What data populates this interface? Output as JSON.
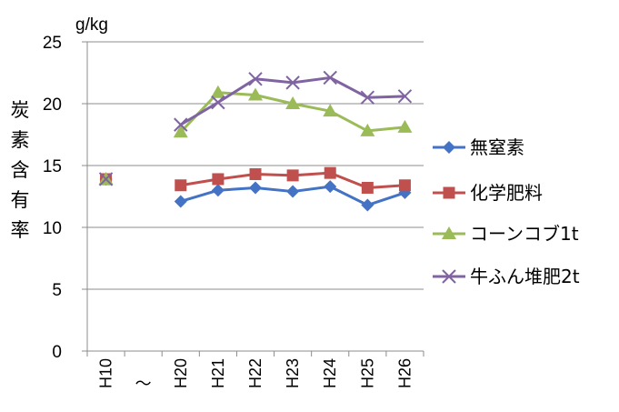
{
  "chart_data": {
    "type": "line",
    "unit_label": "g/kg",
    "ylabel": "炭素含有率",
    "xlabel": "",
    "ylim": [
      0,
      25
    ],
    "yticks": [
      0,
      5,
      10,
      15,
      20,
      25
    ],
    "categories": [
      "H10",
      "〜",
      "H20",
      "H21",
      "H22",
      "H23",
      "H24",
      "H25",
      "H26"
    ],
    "grid": true,
    "legend_position": "right",
    "series": [
      {
        "name": "無窒素",
        "color": "#4472C4",
        "marker": "diamond",
        "values": [
          13.9,
          null,
          12.1,
          13.0,
          13.2,
          12.9,
          13.3,
          11.8,
          12.8
        ]
      },
      {
        "name": "化学肥料",
        "color": "#C0504D",
        "marker": "square",
        "values": [
          13.9,
          null,
          13.4,
          13.9,
          14.3,
          14.2,
          14.4,
          13.2,
          13.4
        ]
      },
      {
        "name": "コーンコブ1t",
        "color": "#9BBB59",
        "marker": "triangle",
        "values": [
          13.9,
          null,
          17.7,
          20.9,
          20.7,
          20.0,
          19.4,
          17.8,
          18.1
        ]
      },
      {
        "name": "牛ふん堆肥2t",
        "color": "#8064A2",
        "marker": "x",
        "values": [
          13.9,
          null,
          18.3,
          20.1,
          22.0,
          21.7,
          22.1,
          20.5,
          20.6
        ]
      }
    ]
  }
}
